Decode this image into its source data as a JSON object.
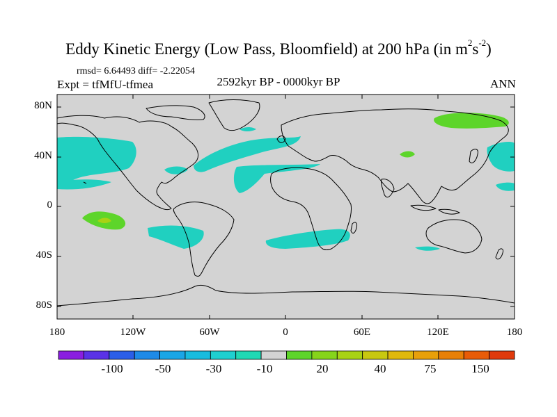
{
  "title": {
    "main": "Eddy Kinetic Energy (Low Pass, Bloomfield) at 200 hPa (in m",
    "sup1": "2",
    "mid": "s",
    "sup2": "-2",
    "close": ")"
  },
  "stats": "rmsd= 6.64493 diff= -2.22054",
  "expt": "Expt = tfMfU-tfmea",
  "period": "2592kyr BP - 0000kyr BP",
  "season": "ANN",
  "colors": {
    "background": "#d3d3d3",
    "coast": "#000000",
    "neg_light": "#20d0c0",
    "pos_light": "#5dd52a",
    "pos_mid": "#a8d214"
  },
  "axes": {
    "lat_ticks": [
      "80N",
      "40N",
      "0",
      "40S",
      "80S"
    ],
    "lon_ticks": [
      "180",
      "120W",
      "60W",
      "0",
      "60E",
      "120E",
      "180"
    ]
  },
  "colorbar": {
    "colors": [
      "#8a1ee0",
      "#5a32e6",
      "#2b5ee8",
      "#1e8ae8",
      "#1aa6e6",
      "#18bcde",
      "#1ed0d0",
      "#20d8b4",
      "#d3d3d3",
      "#5dd52a",
      "#86d41a",
      "#a8d214",
      "#c8c810",
      "#e0b80c",
      "#e8a00a",
      "#e88008",
      "#e85c08",
      "#e03a0c"
    ],
    "labels": [
      "-100",
      "-50",
      "-30",
      "-10",
      "20",
      "40",
      "75",
      "150"
    ]
  }
}
